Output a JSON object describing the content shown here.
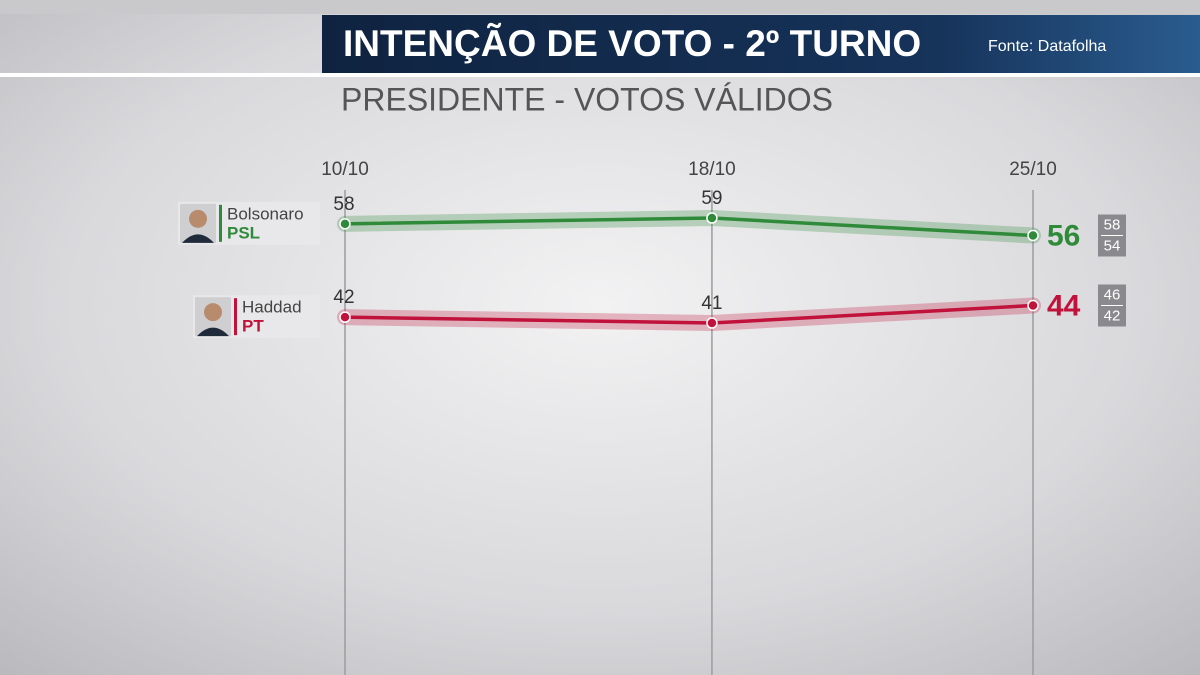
{
  "chart_data": {
    "type": "line",
    "title": "INTENÇÃO DE VOTO - 2º TURNO",
    "source": "Fonte: Datafolha",
    "subtitle": "PRESIDENTE - VOTOS VÁLIDOS",
    "categories": [
      "10/10",
      "18/10",
      "25/10"
    ],
    "series": [
      {
        "name": "Bolsonaro",
        "party": "PSL",
        "color": "#2f8a3a",
        "values": [
          58,
          59,
          56
        ],
        "margin": [
          58,
          54
        ]
      },
      {
        "name": "Haddad",
        "party": "PT",
        "color": "#c0123a",
        "values": [
          42,
          41,
          44
        ],
        "margin": [
          46,
          42
        ]
      }
    ],
    "grid": true
  }
}
